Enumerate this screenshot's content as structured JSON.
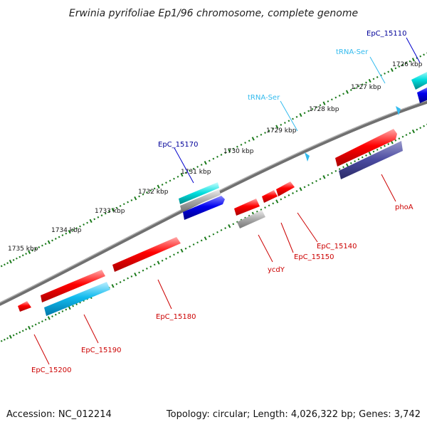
{
  "title": "Erwinia pyrifoliae Ep1/96 chromosome, complete genome",
  "accession": "Accession: NC_012214",
  "topology": "Topology: circular; Length: 4,026,322 bp; Genes: 3,742",
  "colors": {
    "backbone": "#808080",
    "tick_major": "#1a7a1a",
    "tick_minor": "#1a7a1a",
    "gene_red": "#ff0000",
    "gene_red_label": "#cc0000",
    "gene_blue": "#0000ee",
    "gene_blue_label": "#000099",
    "gene_cyan": "#00bbee",
    "trna": "#33bbee",
    "gene_gray": "#aaaaaa",
    "gene_slate": "#4a4aa0",
    "gene_teal": "#00cccc"
  },
  "scale_labels": [
    {
      "text": "1726 kbp"
    },
    {
      "text": "1727 kbp"
    },
    {
      "text": "1728 kbp"
    },
    {
      "text": "1729 kbp"
    },
    {
      "text": "1730 kbp"
    },
    {
      "text": "1731 kbp"
    },
    {
      "text": "1732 kbp"
    },
    {
      "text": "1733 kbp"
    },
    {
      "text": "1734 kbp"
    },
    {
      "text": "1735 kbp"
    }
  ],
  "features": [
    {
      "name": "EpC_15110",
      "type": "gene",
      "color": "gene_blue_label"
    },
    {
      "name": "tRNA-Ser",
      "type": "tRNA",
      "color": "trna"
    },
    {
      "name": "tRNA-Ser",
      "type": "tRNA",
      "color": "trna"
    },
    {
      "name": "EpC_15170",
      "type": "gene",
      "color": "gene_blue_label"
    },
    {
      "name": "phoA",
      "type": "gene",
      "color": "gene_red_label"
    },
    {
      "name": "EpC_15140",
      "type": "gene",
      "color": "gene_red_label"
    },
    {
      "name": "EpC_15150",
      "type": "gene",
      "color": "gene_red_label"
    },
    {
      "name": "ycdY",
      "type": "gene",
      "color": "gene_red_label"
    },
    {
      "name": "EpC_15180",
      "type": "gene",
      "color": "gene_red_label"
    },
    {
      "name": "EpC_15190",
      "type": "gene",
      "color": "gene_red_label"
    },
    {
      "name": "EpC_15200",
      "type": "gene",
      "color": "gene_red_label"
    }
  ]
}
